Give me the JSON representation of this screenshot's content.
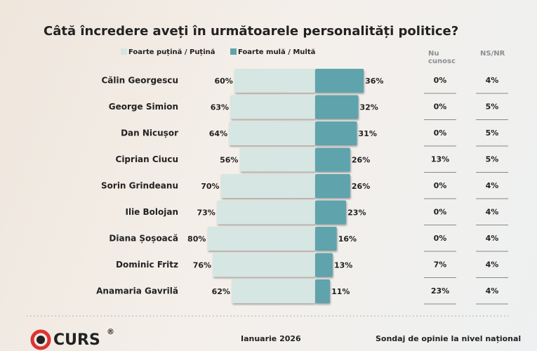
{
  "chart_data": {
    "type": "diverging_bar",
    "title": "Câtă încredere aveți în următoarele personalități politice?",
    "categories": [
      "Călin Georgescu",
      "George Simion",
      "Dan Nicușor",
      "Ciprian Ciucu",
      "Sorin Grindeanu",
      "Ilie Bolojan",
      "Diana Șoșoacă",
      "Dominic Fritz",
      "Anamaria Gavrilă"
    ],
    "series": [
      {
        "name": "Foarte puțină / Puțină",
        "color": "#d6e6e2",
        "side": "left",
        "values": [
          60,
          63,
          64,
          56,
          70,
          73,
          80,
          76,
          62
        ],
        "value_labels": [
          "60%",
          "63%",
          "64%",
          "56%",
          "70%",
          "73%",
          "80%",
          "76%",
          "62%"
        ]
      },
      {
        "name": "Foarte mulă / Multă",
        "color": "#5fa3ad",
        "side": "right",
        "values": [
          36,
          32,
          31,
          26,
          26,
          23,
          16,
          13,
          11
        ],
        "value_labels": [
          "36%",
          "32%",
          "31%",
          "26%",
          "26%",
          "23%",
          "16%",
          "13%",
          "11%"
        ]
      }
    ],
    "extra_columns": [
      {
        "header": "Nu cunosc",
        "values": [
          0,
          0,
          0,
          13,
          0,
          0,
          0,
          7,
          23
        ],
        "value_labels": [
          "0%",
          "0%",
          "0%",
          "13%",
          "0%",
          "0%",
          "0%",
          "7%",
          "23%"
        ]
      },
      {
        "header": "NS/NR",
        "values": [
          4,
          5,
          5,
          5,
          4,
          4,
          4,
          4,
          4
        ],
        "value_labels": [
          "4%",
          "5%",
          "5%",
          "5%",
          "4%",
          "4%",
          "4%",
          "4%",
          "4%"
        ]
      }
    ]
  },
  "footer": {
    "logo": "CURS",
    "logo_mark": "®",
    "date": "Ianuarie 2026",
    "note": "Sondaj de opinie la nivel național"
  }
}
